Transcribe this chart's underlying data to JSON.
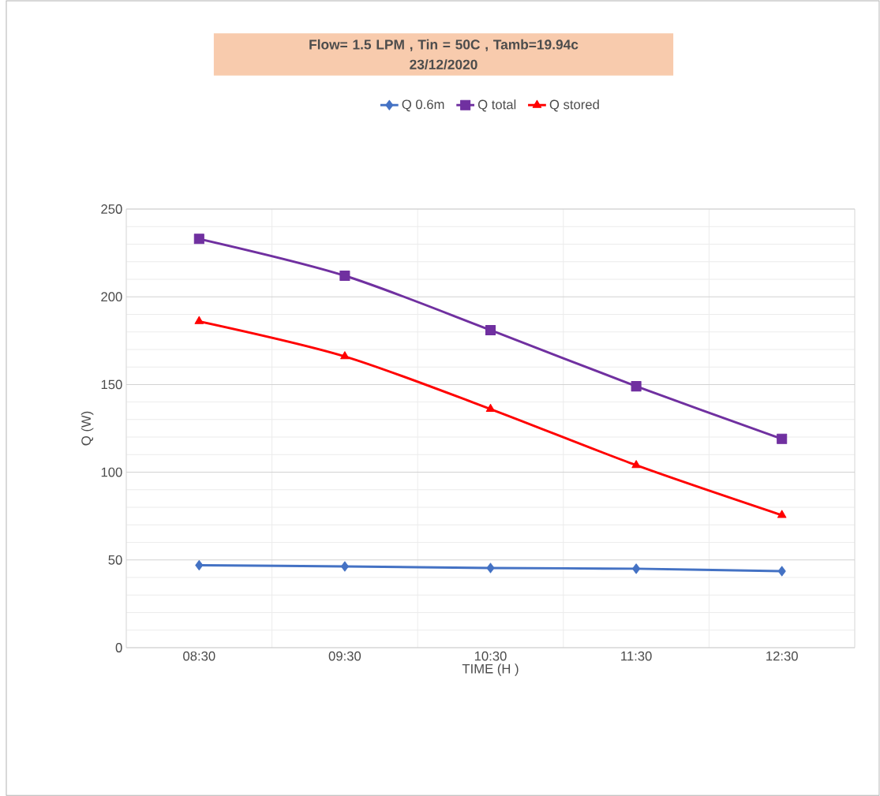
{
  "chart_data": {
    "type": "line",
    "title": "Flow= 1.5 LPM , Tin = 50C , Tamb=19.94c\n23/12/2020",
    "xlabel": "TIME (H )",
    "ylabel": "Q (W)",
    "categories": [
      "08:30",
      "09:30",
      "10:30",
      "11:30",
      "12:30"
    ],
    "series": [
      {
        "name": "Q 0.6m",
        "color": "#4472c4",
        "marker": "diamond",
        "values": [
          47,
          46.3,
          45.4,
          45,
          43.6
        ]
      },
      {
        "name": "Q total",
        "color": "#7030a0",
        "marker": "square",
        "values": [
          233,
          212,
          181,
          149,
          119
        ]
      },
      {
        "name": "Q stored",
        "color": "#ff0000",
        "marker": "triangle",
        "values": [
          186,
          166,
          136,
          104,
          75.5
        ]
      }
    ],
    "ylim": [
      0,
      250
    ],
    "yticks": [
      0,
      50,
      100,
      150,
      200,
      250
    ],
    "grid": true,
    "legend": "top",
    "line_style": "solid"
  }
}
